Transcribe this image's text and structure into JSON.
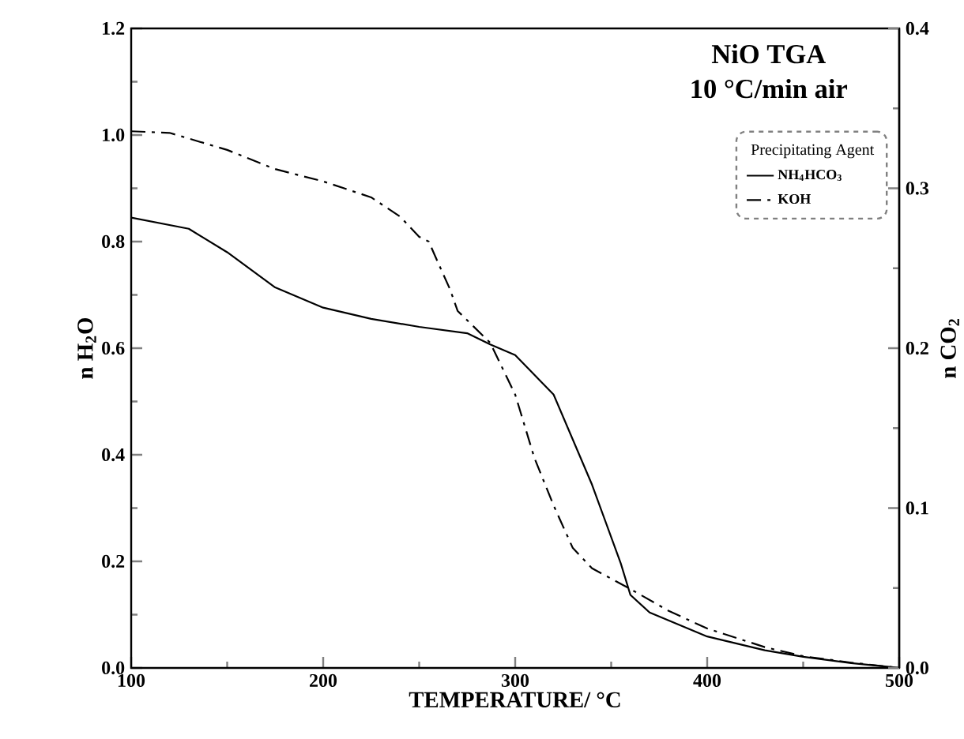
{
  "chart_data": {
    "type": "line",
    "title": "NiO TGA",
    "subtitle": "10 °C/min air",
    "xlabel": "TEMPERATURE/ °C",
    "ylabel": "n H$_{2}$O",
    "y2label": "n CO$_{2}$",
    "legend_title": "Precipitating Agent",
    "legend": "top right",
    "marker": "none",
    "xlim": [
      100,
      500
    ],
    "xticks": [
      100,
      200,
      300,
      400,
      500
    ],
    "ylim": [
      0,
      1.2
    ],
    "yticks": [
      {
        "value": 0,
        "label": "0.0"
      },
      0.2,
      0.4,
      0.6,
      0.8,
      {
        "value": 1,
        "label": "1.0"
      },
      1.2
    ],
    "y2lim": [
      0,
      0.4
    ],
    "y2ticks": [
      {
        "value": 0,
        "label": "0.0"
      },
      0.1,
      0.2,
      0.3,
      0.4
    ],
    "series": [
      {
        "name": "NH$_{4}$HCO$_{3}$",
        "color": "#000000",
        "line_style": "solid",
        "x": [
          100,
          130,
          150,
          175,
          200,
          225,
          250,
          275,
          287,
          300,
          320,
          340,
          355,
          360,
          370,
          400,
          430,
          450,
          475,
          500
        ],
        "values": [
          0.845,
          0.824,
          0.78,
          0.714,
          0.676,
          0.655,
          0.64,
          0.628,
          0.607,
          0.587,
          0.513,
          0.344,
          0.196,
          0.137,
          0.104,
          0.059,
          0.033,
          0.021,
          0.009,
          0.0
        ]
      },
      {
        "name": "KOH",
        "color": "#000000",
        "line_style": "dashed",
        "x": [
          100,
          120,
          150,
          175,
          200,
          225,
          240,
          250,
          255,
          260,
          266,
          270,
          287,
          300,
          310,
          320,
          330,
          340,
          360,
          380,
          400,
          430,
          450,
          475,
          500
        ],
        "values": [
          1.007,
          1.004,
          0.972,
          0.936,
          0.913,
          0.883,
          0.847,
          0.809,
          0.8,
          0.759,
          0.711,
          0.67,
          0.61,
          0.513,
          0.394,
          0.305,
          0.225,
          0.187,
          0.148,
          0.107,
          0.074,
          0.039,
          0.022,
          0.01,
          0.0
        ]
      }
    ]
  }
}
